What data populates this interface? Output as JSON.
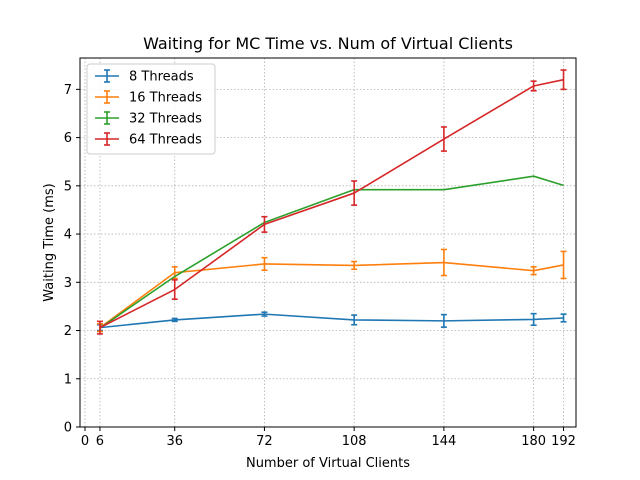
{
  "chart_data": {
    "type": "line",
    "title": "Waiting for MC Time vs. Num of Virtual Clients",
    "xlabel": "Number of Virtual Clients",
    "ylabel": "Waiting Time (ms)",
    "x": [
      6,
      36,
      72,
      108,
      144,
      180,
      192
    ],
    "xticks": [
      0,
      6,
      36,
      72,
      108,
      144,
      180,
      192
    ],
    "yticks": [
      0,
      1,
      2,
      3,
      4,
      5,
      6,
      7
    ],
    "xlim": [
      -2,
      197
    ],
    "ylim": [
      0,
      7.65
    ],
    "grid": true,
    "legend_position": "top-left",
    "series": [
      {
        "name": "8 Threads",
        "color": "#1f77b4",
        "values": [
          2.06,
          2.22,
          2.34,
          2.22,
          2.2,
          2.23,
          2.26
        ],
        "errors": [
          0.06,
          0.03,
          0.04,
          0.1,
          0.13,
          0.12,
          0.08
        ]
      },
      {
        "name": "16 Threads",
        "color": "#ff7f0e",
        "values": [
          2.06,
          3.2,
          3.38,
          3.35,
          3.41,
          3.24,
          3.36
        ],
        "errors": [
          0.08,
          0.12,
          0.13,
          0.08,
          0.27,
          0.08,
          0.28
        ]
      },
      {
        "name": "32 Threads",
        "color": "#2ca02c",
        "values": [
          2.05,
          3.12,
          4.24,
          4.92,
          4.92,
          5.2,
          5.01
        ]
      },
      {
        "name": "64 Threads",
        "color": "#d62728",
        "values": [
          2.06,
          2.85,
          4.2,
          4.85,
          5.97,
          7.07,
          7.2
        ],
        "errors": [
          0.13,
          0.2,
          0.16,
          0.25,
          0.25,
          0.1,
          0.2
        ]
      }
    ]
  }
}
